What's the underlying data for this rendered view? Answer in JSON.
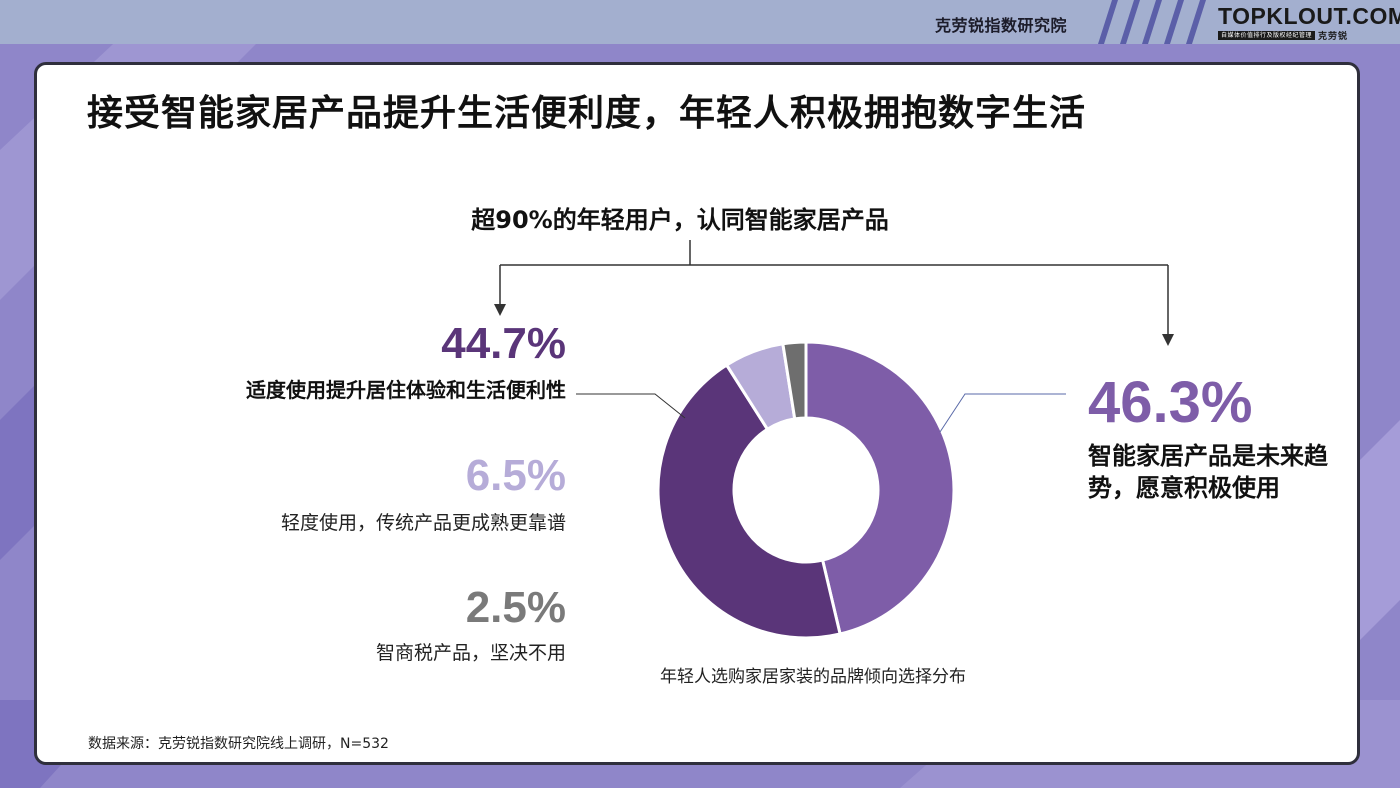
{
  "header": {
    "org_name": "克劳锐指数研究院",
    "logo_main": "TOPKLOUT.COM",
    "logo_tagline": "自媒体价值排行及版权经纪管理",
    "logo_cn": "克劳锐"
  },
  "title": "接受智能家居产品提升生活便利度，年轻人积极拥抱数字生活",
  "subtitle": "超90%的年轻用户，认同智能家居产品",
  "callouts": [
    {
      "pct": "44.7%",
      "desc": "适度使用提升居住体验和生活便利性"
    },
    {
      "pct": "6.5%",
      "desc": "轻度使用，传统产品更成熟更靠谱"
    },
    {
      "pct": "2.5%",
      "desc": "智商税产品，坚决不用"
    },
    {
      "pct": "46.3%",
      "desc": "智能家居产品是未来趋势，愿意积极使用"
    }
  ],
  "chart_caption": "年轻人选购家居家装的品牌倾向选择分布",
  "source": "数据来源：克劳锐指数研究院线上调研，N=532",
  "chart_data": {
    "type": "pie",
    "title": "年轻人选购家居家装的品牌倾向选择分布",
    "donut": true,
    "slices": [
      {
        "label": "智能家居产品是未来趋势，愿意积极使用",
        "value": 46.3,
        "color": "#7e5da8"
      },
      {
        "label": "适度使用提升居住体验和生活便利性",
        "value": 44.7,
        "color": "#5a3579"
      },
      {
        "label": "轻度使用，传统产品更成熟更靠谱",
        "value": 6.5,
        "color": "#b6acd8"
      },
      {
        "label": "智商税产品，坚决不用",
        "value": 2.5,
        "color": "#6e6e6e"
      }
    ],
    "start": "12 o'clock",
    "direction": "clockwise"
  },
  "colors": {
    "topbar": "#a3afcf",
    "background": "#8f86c9",
    "accent_dark": "#5a3579",
    "accent": "#7e5da8",
    "accent_light": "#b6acd8",
    "gray": "#6e6e6e"
  }
}
